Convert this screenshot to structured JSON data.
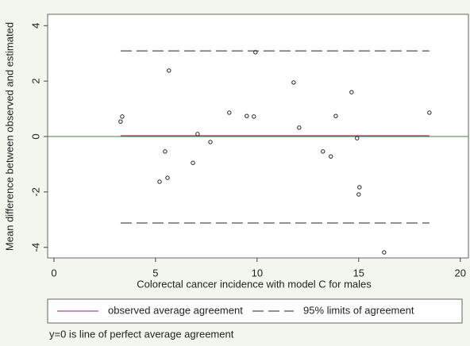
{
  "chart_data": {
    "type": "scatter",
    "x_label": "Colorectal cancer incidence with model C for males",
    "y_label": "Mean difference between observed and estimated",
    "xlim": [
      -0.31,
      20.4
    ],
    "ylim": [
      -4.38,
      4.41
    ],
    "xticks": [
      0,
      5,
      10,
      15,
      20
    ],
    "yticks": [
      -4,
      -2,
      0,
      2,
      4
    ],
    "points": {
      "color": "#222222",
      "x": [
        3.28,
        3.36,
        5.66,
        5.2,
        5.47,
        5.59,
        6.84,
        7.07,
        7.7,
        8.63,
        9.49,
        9.84,
        9.92,
        11.8,
        12.07,
        13.24,
        13.63,
        13.87,
        14.65,
        14.92,
        15.04,
        15.0,
        16.25,
        18.48
      ],
      "values": [
        0.54,
        0.72,
        2.38,
        -1.63,
        -0.54,
        -1.49,
        -0.95,
        0.09,
        -0.2,
        0.86,
        0.74,
        0.72,
        3.04,
        1.95,
        0.32,
        -0.54,
        -0.72,
        0.74,
        1.6,
        -0.06,
        -1.83,
        -2.09,
        -4.18,
        0.86
      ]
    },
    "lines": [
      {
        "name": "observed average agreement",
        "color": "#8b2a6b",
        "dashed": false,
        "values": [
          0.03
        ]
      },
      {
        "name": "95% limits of agreement",
        "color": "#222222",
        "dashed": true,
        "values": [
          3.09,
          -3.12
        ]
      }
    ],
    "reference_line": {
      "value": 0,
      "color": "#3c8a3c"
    },
    "note": "y=0 is line of perfect average agreement"
  }
}
